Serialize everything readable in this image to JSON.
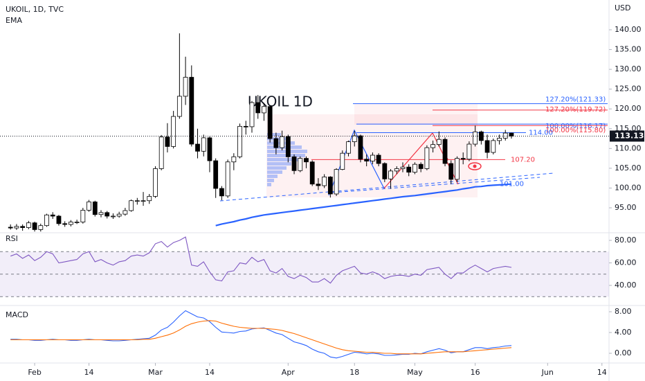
{
  "chart_data": [
    {
      "type": "candlestick",
      "title": "UKOIL, 1D, TVC",
      "annotation": "UKOIL 1D",
      "y_axis_label": "USD",
      "up_color": "#ffffff",
      "down_color": "#000000",
      "wick_color": "#000000",
      "xticks": [
        {
          "value": 4,
          "label": "Feb"
        },
        {
          "value": 13,
          "label": "14"
        },
        {
          "value": 24,
          "label": "Mar"
        },
        {
          "value": 33,
          "label": "14"
        },
        {
          "value": 46,
          "label": "Apr"
        },
        {
          "value": 57,
          "label": "18"
        },
        {
          "value": 67,
          "label": "May"
        },
        {
          "value": 77,
          "label": "16"
        },
        {
          "value": 89,
          "label": "Jun"
        },
        {
          "value": 98,
          "label": "14"
        }
      ],
      "ylim": [
        88.87,
        147.53
      ],
      "yticks": [
        {
          "value": 95,
          "label": "95.00"
        },
        {
          "value": 100,
          "label": "100.00"
        },
        {
          "value": 105,
          "label": "105.00"
        },
        {
          "value": 110,
          "label": "110.00"
        },
        {
          "value": 115,
          "label": "115.00"
        },
        {
          "value": 120,
          "label": "120.00"
        },
        {
          "value": 125,
          "label": "125.00"
        },
        {
          "value": 130,
          "label": "130.00"
        },
        {
          "value": 135,
          "label": "135.00"
        },
        {
          "value": 140,
          "label": "140.00"
        }
      ],
      "candles": [
        [
          90.1,
          90.8,
          89.5,
          89.9
        ],
        [
          89.9,
          90.9,
          89.4,
          90.3
        ],
        [
          90.3,
          90.8,
          89.2,
          90.0
        ],
        [
          90.0,
          91.7,
          89.6,
          91.2
        ],
        [
          91.2,
          91.5,
          89.0,
          89.5
        ],
        [
          89.5,
          91.0,
          89.0,
          90.5
        ],
        [
          90.5,
          93.5,
          90.2,
          93.2
        ],
        [
          93.2,
          93.9,
          92.2,
          92.9
        ],
        [
          92.9,
          93.2,
          90.5,
          91.0
        ],
        [
          91.0,
          91.6,
          90.2,
          90.8
        ],
        [
          90.8,
          91.9,
          90.3,
          91.4
        ],
        [
          91.4,
          92.0,
          90.9,
          91.4
        ],
        [
          91.4,
          95.0,
          91.0,
          94.4
        ],
        [
          94.4,
          97.0,
          94.0,
          96.5
        ],
        [
          96.5,
          96.8,
          92.8,
          93.3
        ],
        [
          93.3,
          94.4,
          92.6,
          93.8
        ],
        [
          93.8,
          94.2,
          92.3,
          92.9
        ],
        [
          92.9,
          93.6,
          92.2,
          92.9
        ],
        [
          92.9,
          94.0,
          92.5,
          93.4
        ],
        [
          93.4,
          95.0,
          93.0,
          94.3
        ],
        [
          94.3,
          97.1,
          94.0,
          96.8
        ],
        [
          96.8,
          97.5,
          95.8,
          96.8
        ],
        [
          96.8,
          99.0,
          95.5,
          96.8
        ],
        [
          96.8,
          98.5,
          96.0,
          97.9
        ],
        [
          97.9,
          105.5,
          97.5,
          104.9
        ],
        [
          104.9,
          113.4,
          104.5,
          112.9
        ],
        [
          112.9,
          116.4,
          109.0,
          110.5
        ],
        [
          110.5,
          119.5,
          110.0,
          118.1
        ],
        [
          118.1,
          139.1,
          117.5,
          123.2
        ],
        [
          123.2,
          133.2,
          121.0,
          128.0
        ],
        [
          128.0,
          131.0,
          110.5,
          111.1
        ],
        [
          111.1,
          115.0,
          107.5,
          109.3
        ],
        [
          109.3,
          113.5,
          108.0,
          112.7
        ],
        [
          112.7,
          113.0,
          104.0,
          106.9
        ],
        [
          106.9,
          107.5,
          97.5,
          99.9
        ],
        [
          99.9,
          100.5,
          96.9,
          98.0
        ],
        [
          98.0,
          107.2,
          97.5,
          106.6
        ],
        [
          106.6,
          108.8,
          104.5,
          107.9
        ],
        [
          107.9,
          116.3,
          107.5,
          115.6
        ],
        [
          115.6,
          117.0,
          113.5,
          115.5
        ],
        [
          115.5,
          122.0,
          114.0,
          121.6
        ],
        [
          121.6,
          123.5,
          117.5,
          119.0
        ],
        [
          119.0,
          121.5,
          117.0,
          120.6
        ],
        [
          120.6,
          120.9,
          111.5,
          112.5
        ],
        [
          112.5,
          114.0,
          108.5,
          110.2
        ],
        [
          110.2,
          114.5,
          109.5,
          113.0
        ],
        [
          113.0,
          113.5,
          106.5,
          107.9
        ],
        [
          107.9,
          108.5,
          103.5,
          104.4
        ],
        [
          104.4,
          108.0,
          104.0,
          107.5
        ],
        [
          107.5,
          108.0,
          105.0,
          106.6
        ],
        [
          106.6,
          107.0,
          100.5,
          101.0
        ],
        [
          101.0,
          102.5,
          99.5,
          100.6
        ],
        [
          100.6,
          103.5,
          100.0,
          102.8
        ],
        [
          102.8,
          103.0,
          97.6,
          98.5
        ],
        [
          98.5,
          105.0,
          98.0,
          104.7
        ],
        [
          104.7,
          109.5,
          104.5,
          108.8
        ],
        [
          108.8,
          112.0,
          108.0,
          111.7
        ],
        [
          111.7,
          114.5,
          110.5,
          113.2
        ],
        [
          113.2,
          113.5,
          106.5,
          107.3
        ],
        [
          107.3,
          108.5,
          105.5,
          106.8
        ],
        [
          106.8,
          109.0,
          106.0,
          108.3
        ],
        [
          108.3,
          108.8,
          105.5,
          106.2
        ],
        [
          106.2,
          106.5,
          101.5,
          102.3
        ],
        [
          102.3,
          104.8,
          99.8,
          104.3
        ],
        [
          104.3,
          105.5,
          103.5,
          104.9
        ],
        [
          104.9,
          106.5,
          104.0,
          105.3
        ],
        [
          105.3,
          106.0,
          103.0,
          104.0
        ],
        [
          104.0,
          106.5,
          103.5,
          106.0
        ],
        [
          106.0,
          106.5,
          104.0,
          104.9
        ],
        [
          104.9,
          110.8,
          104.5,
          110.2
        ],
        [
          110.2,
          112.0,
          109.0,
          111.0
        ],
        [
          111.0,
          114.3,
          110.5,
          112.3
        ],
        [
          112.3,
          112.8,
          105.5,
          106.2
        ],
        [
          106.2,
          107.0,
          101.0,
          102.2
        ],
        [
          102.2,
          108.0,
          101.5,
          107.5
        ],
        [
          107.5,
          109.0,
          106.0,
          107.3
        ],
        [
          107.3,
          111.8,
          106.8,
          111.1
        ],
        [
          111.1,
          115.8,
          110.5,
          114.2
        ],
        [
          114.2,
          114.5,
          111.0,
          112.0
        ],
        [
          112.0,
          113.5,
          107.5,
          109.0
        ],
        [
          109.0,
          112.5,
          108.5,
          112.0
        ],
        [
          112.0,
          113.5,
          111.0,
          112.6
        ],
        [
          112.6,
          114.7,
          112.0,
          113.9
        ],
        [
          113.9,
          114.0,
          112.5,
          113.13
        ]
      ],
      "ema": {
        "name": "EMA",
        "color": "#2962ff",
        "values": [
          null,
          null,
          null,
          null,
          null,
          null,
          null,
          null,
          null,
          null,
          null,
          null,
          null,
          null,
          null,
          null,
          null,
          null,
          null,
          null,
          null,
          null,
          null,
          null,
          null,
          null,
          null,
          null,
          null,
          null,
          null,
          null,
          null,
          null,
          90.5,
          90.9,
          91.2,
          91.5,
          91.9,
          92.2,
          92.6,
          92.9,
          93.2,
          93.4,
          93.6,
          93.8,
          94.0,
          94.2,
          94.4,
          94.6,
          94.8,
          95.0,
          95.2,
          95.4,
          95.6,
          95.8,
          96.0,
          96.2,
          96.4,
          96.6,
          96.8,
          97.0,
          97.2,
          97.4,
          97.6,
          97.8,
          97.95,
          98.1,
          98.3,
          98.5,
          98.7,
          98.9,
          99.1,
          99.3,
          99.5,
          99.8,
          100.0,
          100.3,
          100.4,
          100.6,
          100.7,
          100.8,
          100.9,
          101.0
        ]
      },
      "levels": [
        {
          "value": 121.33,
          "label": "127.20%(121.33)",
          "color": "#2962ff"
        },
        {
          "value": 119.72,
          "label": "127.20%(119.72)",
          "color": "#f23645"
        },
        {
          "value": 116.17,
          "label": "100.00%(116.17)",
          "color": "#2962ff"
        },
        {
          "value": 115.8,
          "label": "100.00%(115.80)",
          "color": "#f23645"
        },
        {
          "value": 114,
          "label": "114.00",
          "color": "#2962ff"
        },
        {
          "value": 107.2,
          "label": "107.20",
          "color": "#f23645"
        },
        {
          "value": 101,
          "label": "101.00",
          "color": "#2962ff"
        }
      ]
    },
    {
      "type": "line",
      "title": "RSI",
      "ylim": [
        22.77,
        86.15
      ],
      "yticks": [
        {
          "value": 80,
          "label": "80.00"
        },
        {
          "value": 60,
          "label": "60.00"
        },
        {
          "value": 40,
          "label": "40.00"
        }
      ],
      "bands": [
        30,
        50,
        70
      ],
      "band_color": "#7e57c2",
      "series": [
        {
          "color": "#7e57c2",
          "values": [
            66,
            68,
            64,
            67,
            62,
            65,
            70,
            68,
            60,
            61,
            62,
            63,
            68,
            70,
            61,
            63,
            60,
            58,
            61,
            62,
            66,
            67,
            66,
            69,
            77,
            79,
            74,
            78,
            80,
            83,
            58,
            57,
            61,
            52,
            45,
            44,
            52,
            53,
            60,
            59,
            65,
            61,
            63,
            53,
            51,
            55,
            48,
            46,
            49,
            47,
            43,
            43,
            46,
            42,
            49,
            53,
            55,
            57,
            51,
            50,
            52,
            50,
            46,
            48,
            49,
            49,
            48,
            50,
            49,
            54,
            55,
            56,
            50,
            46,
            51,
            51,
            55,
            58,
            55,
            52,
            55,
            56,
            57,
            56
          ]
        }
      ]
    },
    {
      "type": "line",
      "title": "MACD",
      "ylim": [
        -1.6,
        9.07
      ],
      "yticks": [
        {
          "value": 8,
          "label": "8.00"
        },
        {
          "value": 4,
          "label": "4.00"
        },
        {
          "value": 0,
          "label": "0.00"
        }
      ],
      "series": [
        {
          "color": "#2962ff",
          "values": [
            2.7,
            2.7,
            2.6,
            2.6,
            2.5,
            2.5,
            2.6,
            2.7,
            2.6,
            2.6,
            2.5,
            2.5,
            2.6,
            2.7,
            2.6,
            2.6,
            2.5,
            2.4,
            2.4,
            2.5,
            2.6,
            2.7,
            2.8,
            2.9,
            3.5,
            4.5,
            5.0,
            6.0,
            7.2,
            8.2,
            7.6,
            7.0,
            6.8,
            6.1,
            5.0,
            4.1,
            4.0,
            3.9,
            4.2,
            4.3,
            4.7,
            4.8,
            4.9,
            4.4,
            3.9,
            3.6,
            2.9,
            2.2,
            1.9,
            1.5,
            0.8,
            0.3,
            0.0,
            -0.7,
            -0.9,
            -0.6,
            -0.2,
            0.2,
            0.1,
            -0.1,
            0.0,
            -0.1,
            -0.4,
            -0.4,
            -0.3,
            -0.2,
            -0.2,
            0.0,
            -0.1,
            0.3,
            0.6,
            0.9,
            0.6,
            0.1,
            0.3,
            0.3,
            0.7,
            1.1,
            1.1,
            0.9,
            1.1,
            1.2,
            1.4,
            1.5
          ]
        },
        {
          "color": "#ff6d00",
          "values": [
            2.6,
            2.6,
            2.6,
            2.6,
            2.6,
            2.6,
            2.6,
            2.6,
            2.6,
            2.6,
            2.6,
            2.6,
            2.6,
            2.6,
            2.6,
            2.6,
            2.6,
            2.6,
            2.6,
            2.6,
            2.6,
            2.6,
            2.7,
            2.7,
            2.9,
            3.2,
            3.5,
            3.9,
            4.5,
            5.2,
            5.7,
            6.0,
            6.2,
            6.3,
            6.2,
            5.8,
            5.5,
            5.2,
            5.0,
            4.9,
            4.8,
            4.8,
            4.8,
            4.7,
            4.6,
            4.4,
            4.1,
            3.8,
            3.4,
            3.0,
            2.6,
            2.2,
            1.8,
            1.4,
            1.0,
            0.7,
            0.5,
            0.4,
            0.3,
            0.2,
            0.2,
            0.1,
            0.0,
            0.0,
            -0.1,
            -0.1,
            -0.1,
            -0.1,
            -0.1,
            0.0,
            0.1,
            0.2,
            0.3,
            0.3,
            0.3,
            0.3,
            0.4,
            0.5,
            0.6,
            0.7,
            0.8,
            0.9,
            1.0,
            1.1
          ]
        }
      ]
    }
  ]
}
